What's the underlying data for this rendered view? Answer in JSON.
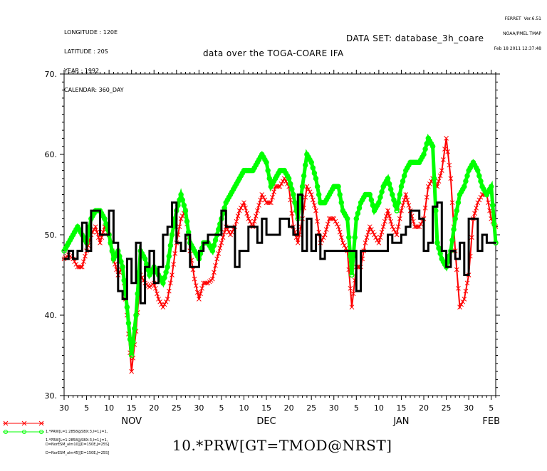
{
  "header": {
    "meta_lines": [
      "LONGITUDE : 120E",
      "LATITUDE : 20S",
      "YEAR : 1992",
      "CALENDAR: 360_DAY"
    ],
    "ferret_lines": [
      "FERRET  Ver.6.51",
      "NOAA/PMEL TMAP",
      "Feb 18 2011 12:37:48"
    ],
    "dataset": "DATA SET: database_3h_coare",
    "subtitle": "data over the TOGA-COARE IFA"
  },
  "legend": {
    "entries": [
      {
        "line1": "1.*PRW[L=1:2858@SBX:3,I=1,J=1,",
        "line2": "D=NorESM_alm10][D=150E,J=25S]",
        "color": "#ff0000",
        "marker": "x"
      },
      {
        "line1": "1.*PRW[L=1:2858@SBX:3,I=1,J=1,",
        "line2": "D=NorESM_alm45][D=150E,J=25S]",
        "color": "#00ff00",
        "marker": "o"
      }
    ]
  },
  "bottom_title": "10.*PRW[GT=TMOD@NRST]",
  "chart_data": {
    "type": "line",
    "xlabel": "",
    "ylabel": "",
    "x_unit": "day (30-day months, Oct 30 to Feb 5)",
    "x_range": [
      0,
      96
    ],
    "ylim": [
      30,
      70
    ],
    "ytick_values": [
      30,
      40,
      50,
      60,
      70
    ],
    "ytick_labels": [
      "30.",
      "40.",
      "50.",
      "60.",
      "70."
    ],
    "xtick_labels": [
      "30",
      "5",
      "10",
      "15",
      "20",
      "25",
      "30",
      "5",
      "10",
      "15",
      "20",
      "25",
      "30",
      "5",
      "10",
      "15",
      "20",
      "25",
      "30",
      "5"
    ],
    "month_labels": [
      {
        "label": "NOV",
        "x": 15
      },
      {
        "label": "DEC",
        "x": 45
      },
      {
        "label": "JAN",
        "x": 75
      },
      {
        "label": "FEB",
        "x": 95
      }
    ],
    "series": [
      {
        "color": "#ff0000",
        "marker": "x",
        "x": [
          0,
          1,
          2,
          3,
          4,
          5,
          6,
          7,
          8,
          9,
          10,
          11,
          12,
          13,
          14,
          15,
          16,
          17,
          18,
          19,
          20,
          21,
          22,
          23,
          24,
          25,
          26,
          27,
          28,
          29,
          30,
          31,
          32,
          33,
          34,
          35,
          36,
          37,
          38,
          39,
          40,
          41,
          42,
          43,
          44,
          45,
          46,
          47,
          48,
          49,
          50,
          51,
          52,
          53,
          54,
          55,
          56,
          57,
          58,
          59,
          60,
          61,
          62,
          63,
          64,
          65,
          66,
          67,
          68,
          69,
          70,
          71,
          72,
          73,
          74,
          75,
          76,
          77,
          78,
          79,
          80,
          81,
          82,
          83,
          84,
          85,
          86,
          87,
          88,
          89,
          90,
          91,
          92,
          93,
          94,
          95,
          96
        ],
        "y": [
          47,
          47.5,
          47,
          46,
          46,
          48,
          50,
          51,
          49,
          51,
          50,
          47,
          45,
          46,
          40,
          33,
          38,
          45,
          44,
          43.5,
          44,
          42,
          41,
          42,
          45,
          49,
          52,
          53,
          48,
          44.5,
          42,
          44,
          44,
          44.5,
          47,
          49,
          51,
          50,
          51,
          53,
          54,
          52,
          51,
          53,
          55,
          54,
          54,
          56,
          56,
          57,
          56,
          51,
          49,
          52,
          56,
          55,
          53,
          49,
          50,
          52,
          52,
          51,
          49,
          48,
          41,
          46,
          46,
          49,
          51,
          50,
          49,
          51,
          53,
          51,
          50,
          53,
          55,
          53,
          51,
          51,
          52,
          56,
          57,
          56,
          58,
          62,
          57,
          48,
          41,
          42,
          45,
          52,
          54,
          55,
          55,
          52,
          51
        ]
      },
      {
        "color": "#00ff00",
        "marker": "o",
        "x": [
          0,
          1,
          2,
          3,
          4,
          5,
          6,
          7,
          8,
          9,
          10,
          11,
          12,
          13,
          14,
          15,
          16,
          17,
          18,
          19,
          20,
          21,
          22,
          23,
          24,
          25,
          26,
          27,
          28,
          29,
          30,
          31,
          32,
          33,
          34,
          35,
          36,
          37,
          38,
          39,
          40,
          41,
          42,
          43,
          44,
          45,
          46,
          47,
          48,
          49,
          50,
          51,
          52,
          53,
          54,
          55,
          56,
          57,
          58,
          59,
          60,
          61,
          62,
          63,
          64,
          65,
          66,
          67,
          68,
          69,
          70,
          71,
          72,
          73,
          74,
          75,
          76,
          77,
          78,
          79,
          80,
          81,
          82,
          83,
          84,
          85,
          86,
          87,
          88,
          89,
          90,
          91,
          92,
          93,
          94,
          95,
          96
        ],
        "y": [
          48,
          49,
          50,
          51,
          50,
          49,
          52,
          53,
          53,
          52,
          50,
          47,
          48,
          46,
          41,
          35,
          40,
          48,
          47,
          45,
          46,
          45,
          44,
          46,
          50,
          53,
          55,
          53,
          49,
          48,
          47,
          49,
          49,
          48,
          50,
          52,
          54,
          55,
          56,
          57,
          58,
          58,
          58,
          59,
          60,
          59,
          56,
          57,
          58,
          58,
          57,
          55,
          52,
          56,
          60,
          59,
          57,
          54,
          54,
          55,
          56,
          56,
          53,
          52,
          45,
          52,
          54,
          55,
          55,
          53,
          54,
          56,
          57,
          55,
          53,
          56,
          58,
          59,
          59,
          59,
          60,
          62,
          61,
          49,
          47,
          46,
          48,
          52,
          55,
          56,
          58,
          59,
          58,
          56,
          55,
          56,
          49
        ]
      },
      {
        "color": "#000000",
        "marker": "none",
        "x": [
          0,
          1,
          2,
          3,
          4,
          5,
          6,
          7,
          8,
          9,
          10,
          11,
          12,
          13,
          14,
          15,
          16,
          17,
          18,
          19,
          20,
          21,
          22,
          23,
          24,
          25,
          26,
          27,
          28,
          29,
          30,
          31,
          32,
          33,
          34,
          35,
          36,
          37,
          38,
          39,
          40,
          41,
          42,
          43,
          44,
          45,
          46,
          47,
          48,
          49,
          50,
          51,
          52,
          53,
          54,
          55,
          56,
          57,
          58,
          59,
          60,
          61,
          62,
          63,
          64,
          65,
          66,
          67,
          68,
          69,
          70,
          71,
          72,
          73,
          74,
          75,
          76,
          77,
          78,
          79,
          80,
          81,
          82,
          83,
          84,
          85,
          86,
          87,
          88,
          89,
          90,
          91,
          92,
          93,
          94,
          95,
          96
        ],
        "y": [
          47,
          48,
          47,
          48,
          51.5,
          48,
          53,
          53,
          50,
          50,
          53,
          49,
          43,
          42,
          47,
          44,
          49,
          41.5,
          46,
          48,
          44,
          46,
          50,
          51,
          54,
          49,
          48,
          50,
          46,
          46,
          48,
          49,
          50,
          50,
          50,
          53,
          51,
          51,
          46,
          48,
          48,
          51,
          51,
          49,
          52,
          50,
          50,
          50,
          52,
          52,
          51,
          50,
          55,
          48,
          52,
          48,
          50,
          47,
          48,
          48,
          48,
          48,
          48,
          48,
          48,
          43,
          48,
          48,
          48,
          48,
          48,
          48,
          50,
          49,
          49,
          50,
          51,
          53,
          53,
          52,
          48,
          49,
          53.5,
          54,
          48,
          46,
          48,
          47,
          49,
          45,
          52,
          52,
          48,
          50,
          49,
          49,
          49
        ],
        "step": true
      }
    ],
    "grid": false,
    "legend_position": "bottom-left"
  }
}
